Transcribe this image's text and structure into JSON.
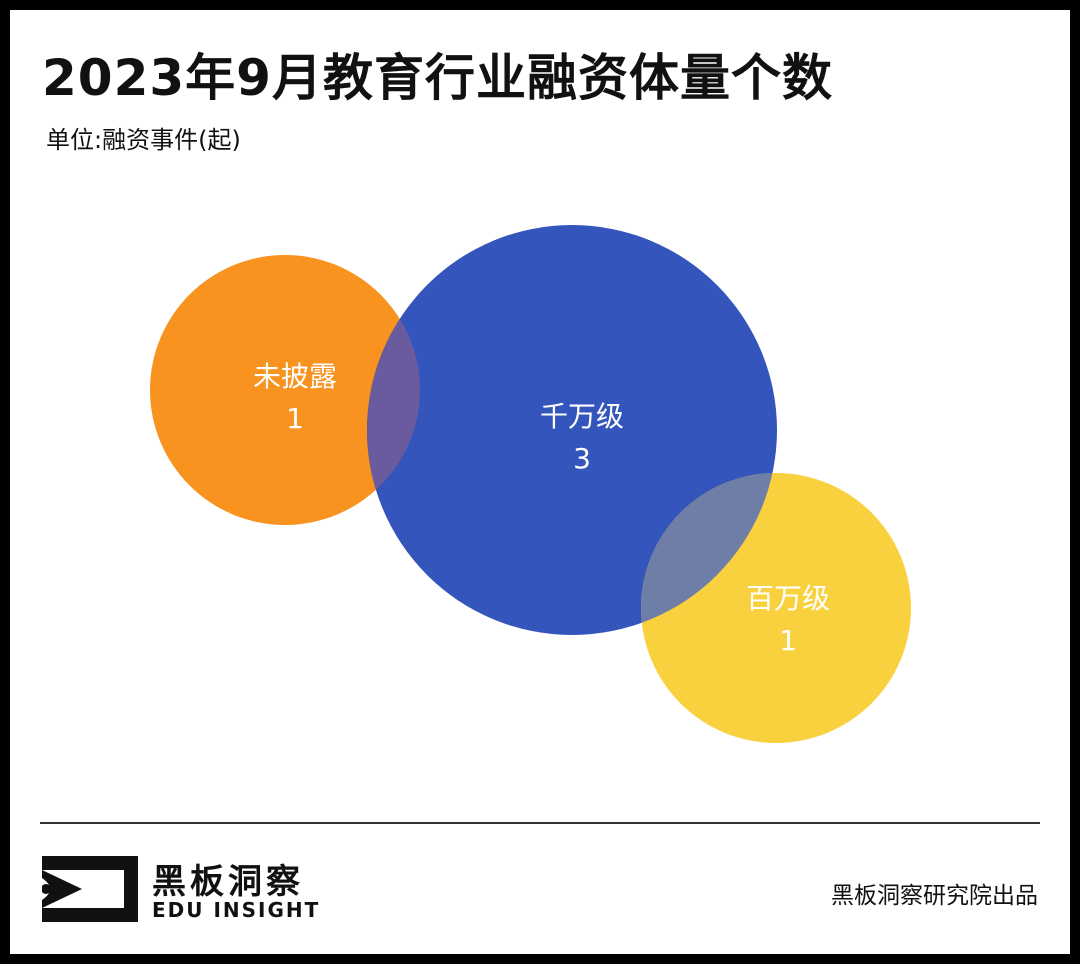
{
  "title": "2023年9月教育行业融资体量个数",
  "subtitle": "单位:融资事件(起)",
  "chart_data": {
    "type": "bubble",
    "title": "2023年9月教育行业融资体量个数",
    "unit": "单位:融资事件(起)",
    "series": [
      {
        "name": "未披露",
        "value": 1,
        "color": "#F7931E"
      },
      {
        "name": "千万级",
        "value": 3,
        "color": "#2D4FBA"
      },
      {
        "name": "百万级",
        "value": 1,
        "color": "#F9CF38"
      }
    ],
    "grid": false,
    "legend": "none"
  },
  "footer": {
    "logo_cn": "黑板洞察",
    "logo_en": "EDU INSIGHT",
    "credit": "黑板洞察研究院出品"
  }
}
